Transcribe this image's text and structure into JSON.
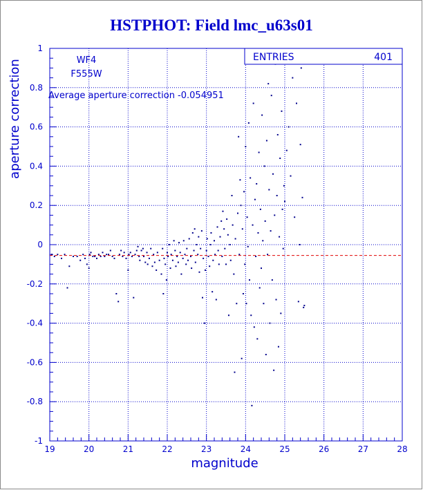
{
  "title": "HSTPHOT: Field lmc_u63s01",
  "colors": {
    "axis": "#0000cc",
    "grid": "#0000cc",
    "points": "#00008b",
    "average_line": "#e00000"
  },
  "chart_data": {
    "type": "scatter",
    "title": "HSTPHOT: Field lmc_u63s01",
    "xlabel": "magnitude",
    "ylabel": "aperture correction",
    "xlim": [
      19,
      28
    ],
    "ylim": [
      -1,
      1
    ],
    "x_ticks": [
      "19",
      "20",
      "21",
      "22",
      "23",
      "24",
      "25",
      "26",
      "27",
      "28"
    ],
    "y_ticks": [
      "-1",
      "-0.8",
      "-0.6",
      "-0.4",
      "-0.2",
      "0",
      "0.2",
      "0.4",
      "0.6",
      "0.8",
      "1"
    ],
    "grid": true,
    "annotations": {
      "chip": "WF4",
      "filter": "F555W",
      "average_text": "Average aperture correction -0.054951",
      "stats_label": "ENTRIES",
      "stats_value": "401"
    },
    "average_line_y": -0.054951,
    "points": [
      [
        19.05,
        -0.05
      ],
      [
        19.12,
        -0.06
      ],
      [
        19.2,
        -0.05
      ],
      [
        19.3,
        -0.07
      ],
      [
        19.38,
        -0.05
      ],
      [
        19.45,
        -0.22
      ],
      [
        19.5,
        -0.11
      ],
      [
        19.6,
        -0.06
      ],
      [
        19.7,
        -0.06
      ],
      [
        19.78,
        -0.08
      ],
      [
        19.85,
        -0.05
      ],
      [
        19.9,
        -0.07
      ],
      [
        19.95,
        -0.1
      ],
      [
        20.0,
        -0.12
      ],
      [
        20.02,
        -0.05
      ],
      [
        20.05,
        -0.04
      ],
      [
        20.1,
        -0.06
      ],
      [
        20.15,
        -0.06
      ],
      [
        20.2,
        -0.07
      ],
      [
        20.25,
        -0.05
      ],
      [
        20.3,
        -0.06
      ],
      [
        20.35,
        -0.04
      ],
      [
        20.4,
        -0.06
      ],
      [
        20.45,
        -0.05
      ],
      [
        20.5,
        -0.05
      ],
      [
        20.55,
        -0.03
      ],
      [
        20.6,
        -0.06
      ],
      [
        20.65,
        -0.07
      ],
      [
        20.7,
        -0.25
      ],
      [
        20.75,
        -0.29
      ],
      [
        20.78,
        -0.05
      ],
      [
        20.82,
        -0.03
      ],
      [
        20.86,
        -0.06
      ],
      [
        20.9,
        -0.04
      ],
      [
        20.95,
        -0.07
      ],
      [
        21.0,
        -0.13
      ],
      [
        21.02,
        -0.05
      ],
      [
        21.06,
        -0.04
      ],
      [
        21.1,
        -0.06
      ],
      [
        21.14,
        -0.27
      ],
      [
        21.18,
        -0.05
      ],
      [
        21.22,
        -0.03
      ],
      [
        21.25,
        -0.01
      ],
      [
        21.28,
        -0.06
      ],
      [
        21.3,
        -0.08
      ],
      [
        21.34,
        -0.03
      ],
      [
        21.38,
        -0.02
      ],
      [
        21.4,
        -0.06
      ],
      [
        21.44,
        -0.09
      ],
      [
        21.48,
        -0.04
      ],
      [
        21.5,
        -0.1
      ],
      [
        21.54,
        -0.07
      ],
      [
        21.58,
        -0.02
      ],
      [
        21.62,
        -0.11
      ],
      [
        21.65,
        -0.05
      ],
      [
        21.68,
        -0.09
      ],
      [
        21.72,
        -0.13
      ],
      [
        21.75,
        -0.04
      ],
      [
        21.8,
        -0.08
      ],
      [
        21.85,
        -0.15
      ],
      [
        21.88,
        -0.02
      ],
      [
        21.9,
        -0.25
      ],
      [
        21.92,
        -0.07
      ],
      [
        21.95,
        -0.1
      ],
      [
        21.98,
        -0.18
      ],
      [
        22.0,
        -0.04
      ],
      [
        22.02,
        -0.06
      ],
      [
        22.05,
        0.0
      ],
      [
        22.08,
        -0.12
      ],
      [
        22.1,
        -0.05
      ],
      [
        22.14,
        -0.08
      ],
      [
        22.17,
        0.02
      ],
      [
        22.2,
        -0.03
      ],
      [
        22.22,
        -0.11
      ],
      [
        22.25,
        -0.06
      ],
      [
        22.28,
        -0.09
      ],
      [
        22.3,
        0.01
      ],
      [
        22.33,
        -0.04
      ],
      [
        22.36,
        -0.15
      ],
      [
        22.4,
        -0.07
      ],
      [
        22.42,
        0.02
      ],
      [
        22.45,
        -0.05
      ],
      [
        22.48,
        -0.1
      ],
      [
        22.5,
        -0.02
      ],
      [
        22.53,
        -0.08
      ],
      [
        22.56,
        0.03
      ],
      [
        22.6,
        -0.06
      ],
      [
        22.62,
        -0.12
      ],
      [
        22.65,
        0.06
      ],
      [
        22.68,
        -0.03
      ],
      [
        22.7,
        0.08
      ],
      [
        22.72,
        -0.09
      ],
      [
        22.75,
        0.0
      ],
      [
        22.78,
        -0.05
      ],
      [
        22.8,
        0.04
      ],
      [
        22.82,
        -0.14
      ],
      [
        22.85,
        -0.02
      ],
      [
        22.88,
        0.07
      ],
      [
        22.9,
        -0.27
      ],
      [
        22.92,
        -0.07
      ],
      [
        22.95,
        -0.4
      ],
      [
        22.97,
        -0.13
      ],
      [
        23.0,
        -0.03
      ],
      [
        23.02,
        0.03
      ],
      [
        23.05,
        -0.06
      ],
      [
        23.08,
        -0.11
      ],
      [
        23.1,
        0.0
      ],
      [
        23.12,
        0.06
      ],
      [
        23.15,
        -0.24
      ],
      [
        23.17,
        -0.08
      ],
      [
        23.2,
        0.02
      ],
      [
        23.22,
        -0.05
      ],
      [
        23.25,
        -0.28
      ],
      [
        23.28,
        0.09
      ],
      [
        23.3,
        -0.03
      ],
      [
        23.32,
        -0.1
      ],
      [
        23.35,
        0.04
      ],
      [
        23.38,
        0.12
      ],
      [
        23.4,
        -0.06
      ],
      [
        23.42,
        0.17
      ],
      [
        23.45,
        0.08
      ],
      [
        23.47,
        -0.02
      ],
      [
        23.5,
        -0.1
      ],
      [
        23.52,
        0.13
      ],
      [
        23.55,
        0.05
      ],
      [
        23.57,
        -0.36
      ],
      [
        23.6,
        0.0
      ],
      [
        23.62,
        -0.08
      ],
      [
        23.65,
        0.25
      ],
      [
        23.67,
        0.1
      ],
      [
        23.7,
        -0.15
      ],
      [
        23.72,
        -0.65
      ],
      [
        23.74,
        0.03
      ],
      [
        23.77,
        -0.3
      ],
      [
        23.8,
        0.16
      ],
      [
        23.82,
        0.55
      ],
      [
        23.84,
        -0.05
      ],
      [
        23.86,
        0.33
      ],
      [
        23.88,
        0.2
      ],
      [
        23.9,
        -0.58
      ],
      [
        23.92,
        0.08
      ],
      [
        23.94,
        -0.25
      ],
      [
        23.96,
        0.27
      ],
      [
        23.98,
        -0.1
      ],
      [
        24.0,
        0.5
      ],
      [
        24.02,
        -0.3
      ],
      [
        24.04,
        0.14
      ],
      [
        24.06,
        -0.01
      ],
      [
        24.08,
        0.62
      ],
      [
        24.1,
        -0.18
      ],
      [
        24.12,
        0.34
      ],
      [
        24.14,
        -0.36
      ],
      [
        24.16,
        -0.82
      ],
      [
        24.18,
        0.1
      ],
      [
        24.2,
        0.72
      ],
      [
        24.22,
        -0.42
      ],
      [
        24.24,
        0.23
      ],
      [
        24.26,
        -0.06
      ],
      [
        24.28,
        0.31
      ],
      [
        24.3,
        -0.48
      ],
      [
        24.32,
        0.06
      ],
      [
        24.34,
        0.47
      ],
      [
        24.36,
        -0.22
      ],
      [
        24.38,
        0.18
      ],
      [
        24.4,
        -0.12
      ],
      [
        24.42,
        0.66
      ],
      [
        24.44,
        0.02
      ],
      [
        24.46,
        -0.3
      ],
      [
        24.48,
        0.4
      ],
      [
        24.5,
        0.12
      ],
      [
        24.52,
        -0.56
      ],
      [
        24.54,
        0.53
      ],
      [
        24.56,
        -0.05
      ],
      [
        24.58,
        0.82
      ],
      [
        24.6,
        0.28
      ],
      [
        24.62,
        -0.4
      ],
      [
        24.64,
        0.07
      ],
      [
        24.66,
        0.76
      ],
      [
        24.68,
        -0.18
      ],
      [
        24.7,
        0.36
      ],
      [
        24.72,
        -0.64
      ],
      [
        24.74,
        0.15
      ],
      [
        24.76,
        0.92
      ],
      [
        24.78,
        -0.28
      ],
      [
        24.8,
        0.25
      ],
      [
        24.82,
        0.56
      ],
      [
        24.84,
        -0.52
      ],
      [
        24.86,
        0.04
      ],
      [
        24.88,
        0.44
      ],
      [
        24.9,
        -0.35
      ],
      [
        24.92,
        0.68
      ],
      [
        24.94,
        0.18
      ],
      [
        24.96,
        -0.02
      ],
      [
        24.98,
        0.3
      ],
      [
        25.0,
        0.22
      ],
      [
        25.05,
        0.48
      ],
      [
        25.1,
        0.6
      ],
      [
        25.15,
        0.35
      ],
      [
        25.2,
        0.85
      ],
      [
        25.25,
        0.14
      ],
      [
        25.3,
        0.72
      ],
      [
        25.35,
        -0.29
      ],
      [
        25.38,
        0.0
      ],
      [
        25.4,
        0.51
      ],
      [
        25.42,
        0.9
      ],
      [
        25.45,
        0.24
      ],
      [
        25.48,
        -0.32
      ],
      [
        25.5,
        -0.31
      ]
    ]
  }
}
